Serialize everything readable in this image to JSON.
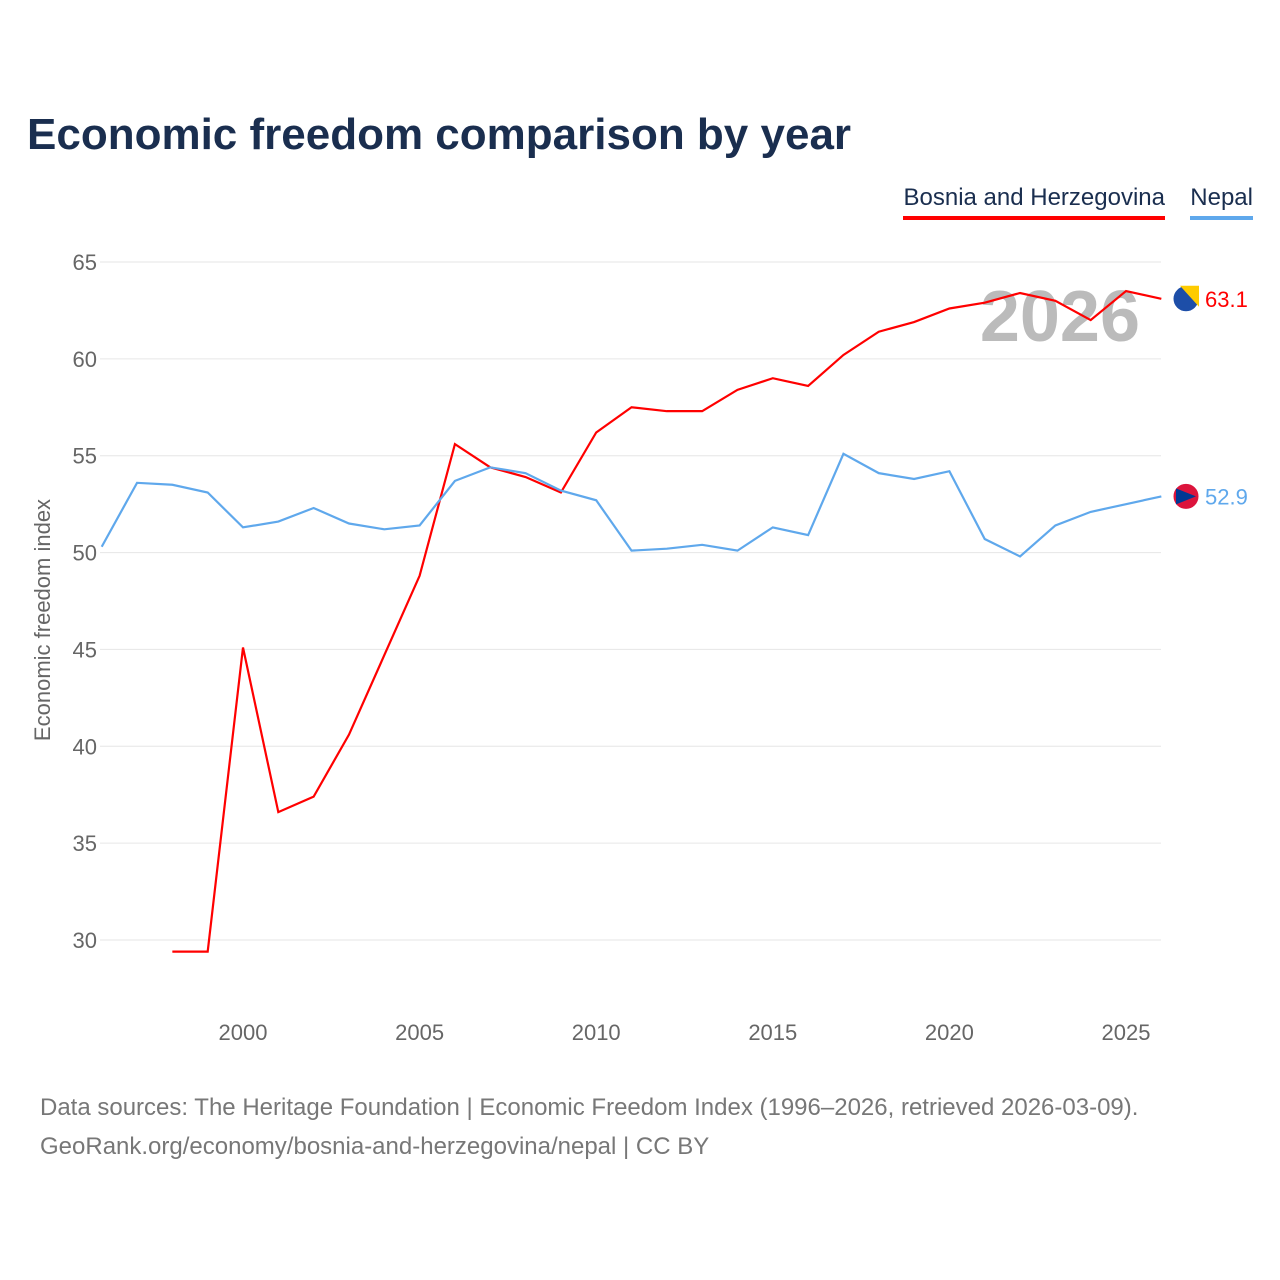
{
  "title": "Economic freedom comparison by year",
  "source_line1": "Data sources: The Heritage Foundation | Economic Freedom Index (1996–2026, retrieved 2026-03-09).",
  "source_line2": "GeoRank.org/economy/bosnia-and-herzegovina/nepal | CC BY",
  "chart_data": {
    "type": "line",
    "title": "Economic freedom comparison by year",
    "ylabel": "Economic freedom index",
    "xlabel": "",
    "year_watermark": "2026",
    "xlim": [
      1996,
      2026
    ],
    "ylim": [
      26.5,
      66.5
    ],
    "xticks": [
      2000,
      2005,
      2010,
      2015,
      2020,
      2025
    ],
    "yticks": [
      30,
      35,
      40,
      45,
      50,
      55,
      60,
      65
    ],
    "grid": true,
    "legend": "top-right",
    "series": [
      {
        "name": "Bosnia and Herzegovina",
        "color": "#ff0000",
        "end_label": "63.1",
        "x": [
          1998,
          1999,
          2000,
          2001,
          2002,
          2003,
          2004,
          2005,
          2006,
          2007,
          2008,
          2009,
          2010,
          2011,
          2012,
          2013,
          2014,
          2015,
          2016,
          2017,
          2018,
          2019,
          2020,
          2021,
          2022,
          2023,
          2024,
          2025,
          2026
        ],
        "values": [
          29.4,
          29.4,
          45.1,
          36.6,
          37.4,
          40.6,
          44.7,
          48.8,
          55.6,
          54.4,
          53.9,
          53.1,
          56.2,
          57.5,
          57.3,
          57.3,
          58.4,
          59.0,
          58.6,
          60.2,
          61.4,
          61.9,
          62.6,
          62.9,
          63.4,
          63.0,
          62.0,
          63.5,
          63.1
        ]
      },
      {
        "name": "Nepal",
        "color": "#5fa8ec",
        "end_label": "52.9",
        "x": [
          1996,
          1997,
          1998,
          1999,
          2000,
          2001,
          2002,
          2003,
          2004,
          2005,
          2006,
          2007,
          2008,
          2009,
          2010,
          2011,
          2012,
          2013,
          2014,
          2015,
          2016,
          2017,
          2018,
          2019,
          2020,
          2021,
          2022,
          2023,
          2024,
          2025,
          2026
        ],
        "values": [
          50.3,
          53.6,
          53.5,
          53.1,
          51.3,
          51.6,
          52.3,
          51.5,
          51.2,
          51.4,
          53.7,
          54.4,
          54.1,
          53.2,
          52.7,
          50.1,
          50.2,
          50.4,
          50.1,
          51.3,
          50.9,
          55.1,
          54.1,
          53.8,
          54.2,
          50.7,
          49.8,
          51.4,
          52.1,
          52.5,
          52.9
        ]
      }
    ]
  }
}
